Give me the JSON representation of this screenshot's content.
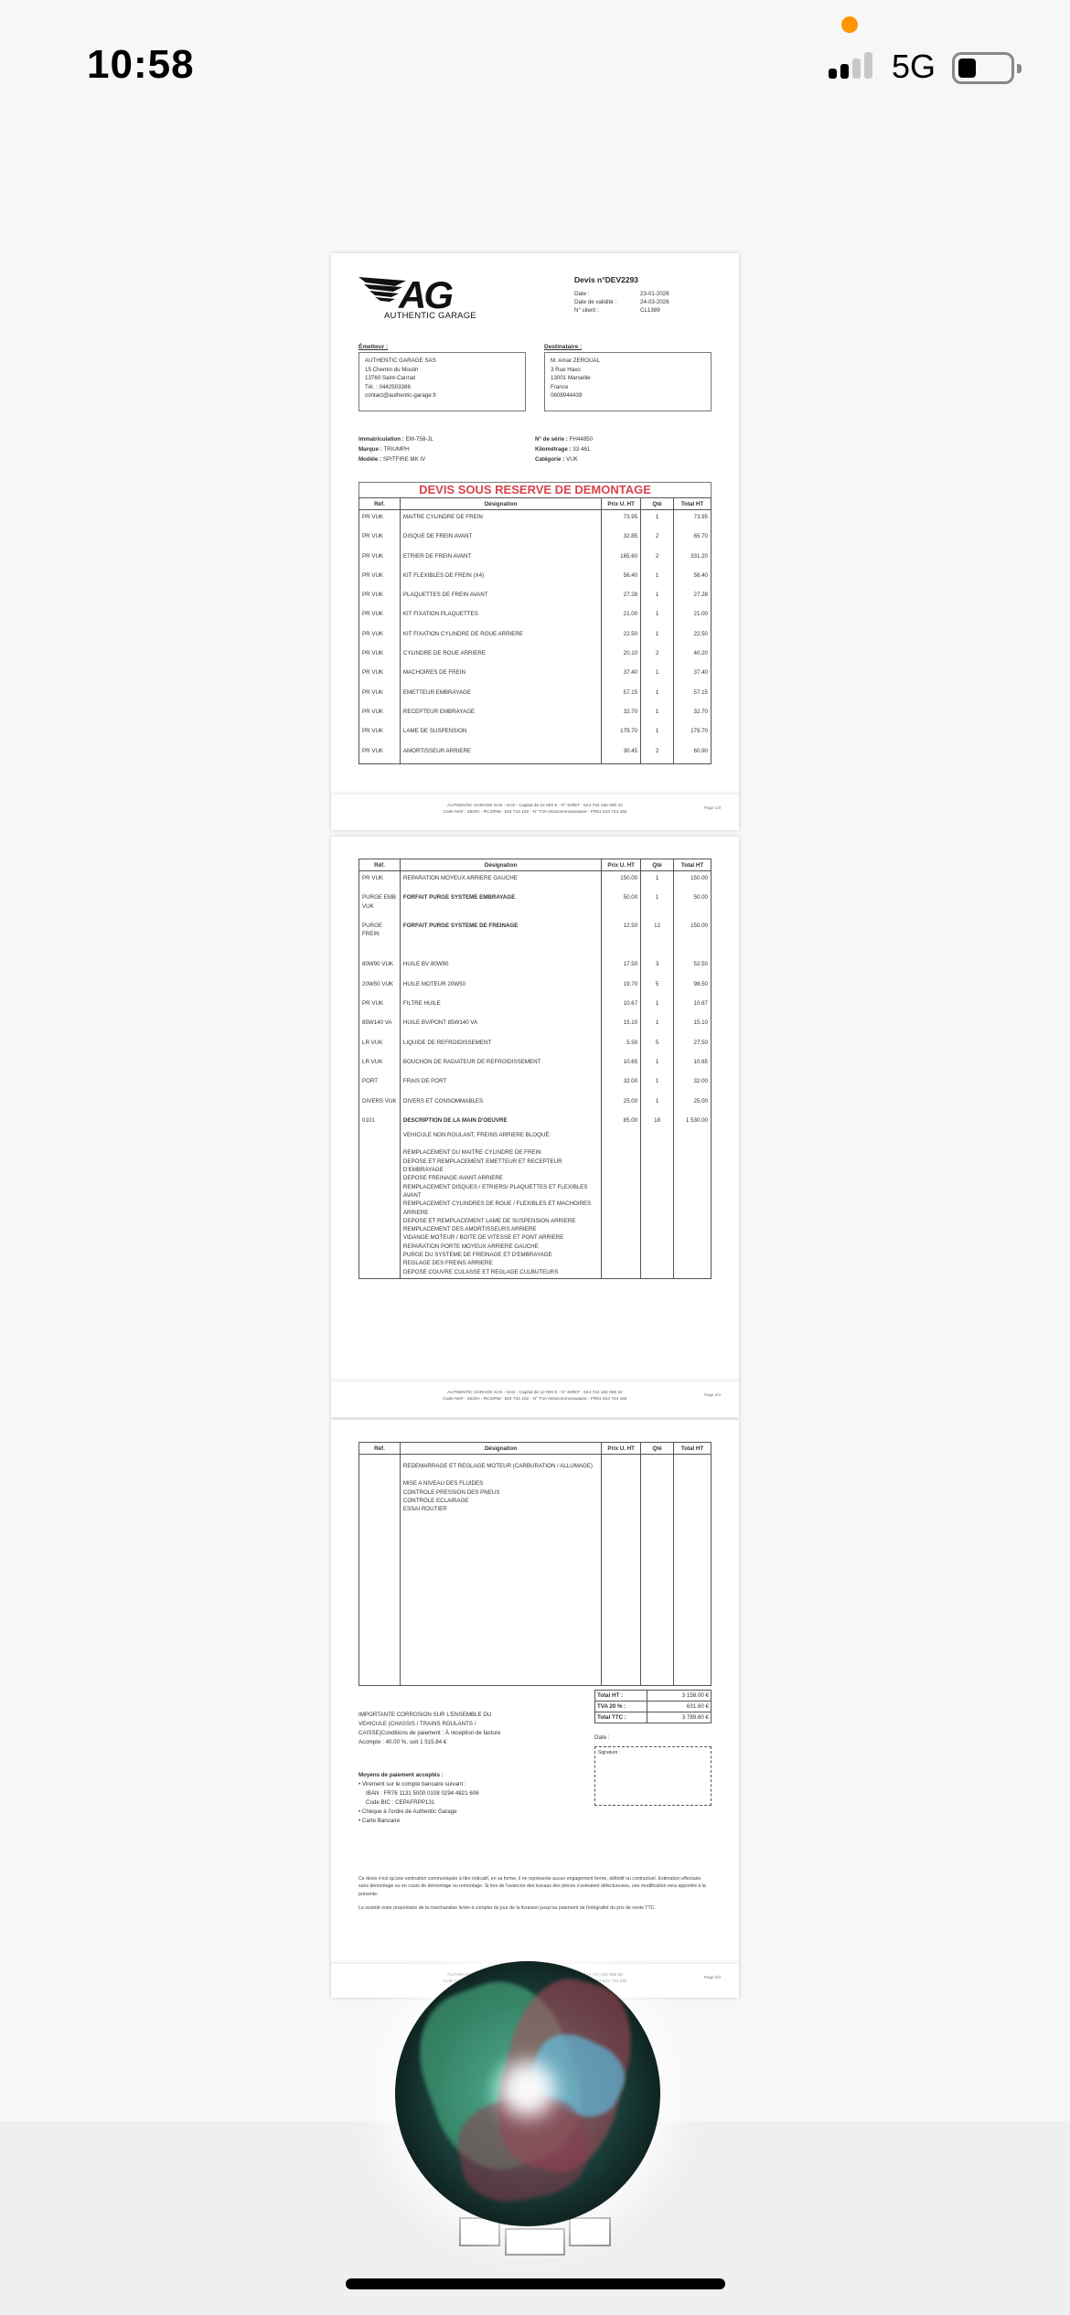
{
  "status_bar": {
    "time": "10:58",
    "network": "5G",
    "battery_percent": 25,
    "signal_bars": 2,
    "recording_dot_color": "#ff9500"
  },
  "doc": {
    "logo": {
      "letters": "AG",
      "name": "AUTHENTIC GARAGE"
    },
    "devis_title": "Devis n°DEV2293",
    "meta": [
      {
        "label": "Date :",
        "value": "23-01-2026"
      },
      {
        "label": "Date de validité :",
        "value": "24-03-2026"
      },
      {
        "label": "N° client :",
        "value": "CL1389"
      }
    ],
    "emetteur": {
      "label": "Émetteur :",
      "lines": [
        "AUTHENTIC GARAGE SAS",
        "15 Chemin du Moulin",
        "13760 Saint-Cannat",
        "Tél. : 0442503386",
        "contact@authentic-garage.fr"
      ]
    },
    "destinataire": {
      "label": "Destinataire :",
      "lines": [
        "M. Amar ZEROUAL",
        "3 Rue Haxo",
        "13001 Marseille",
        "France",
        "0608944439"
      ]
    },
    "vehicle_left": [
      {
        "label": "Immatriculation :",
        "value": "EM-758-JL"
      },
      {
        "label": "Marque :",
        "value": "TRIUMPH"
      },
      {
        "label": "Modèle :",
        "value": "SPITFIRE MK IV"
      }
    ],
    "vehicle_right": [
      {
        "label": "N° de série :",
        "value": "FH44850"
      },
      {
        "label": "Kilométrage :",
        "value": "33 461"
      },
      {
        "label": "Catégorie :",
        "value": "VUK"
      }
    ],
    "banner": "DEVIS SOUS RESERVE DE DEMONTAGE",
    "banner_color": "#d9434a",
    "columns": [
      "Réf.",
      "Désignation",
      "Prix U. HT",
      "Qté",
      "Total HT"
    ],
    "page1_rows": [
      [
        "PR VUK",
        "MAITRE CYLINDRE DE FREIN",
        "73.95",
        "1",
        "73.95"
      ],
      [
        "PR VUK",
        "DISQUE DE FREIN AVANT",
        "32.85",
        "2",
        "65.70"
      ],
      [
        "PR VUK",
        "ETRIER DE FREIN AVANT",
        "165.60",
        "2",
        "331.20"
      ],
      [
        "PR VUK",
        " KIT FLEXIBLES DE FREIN (X4)",
        "56.40",
        "1",
        "56.40"
      ],
      [
        "PR VUK",
        "PLAQUETTES DE FREIN AVANT",
        "27.28",
        "1",
        "27.28"
      ],
      [
        "PR VUK",
        "KIT FIXATION PLAQUETTES",
        "21.00",
        "1",
        "21.00"
      ],
      [
        "PR VUK",
        "KIT FIXATION CYLINDRE DE ROUE ARRIERE",
        "22.50",
        "1",
        "22.50"
      ],
      [
        "PR VUK",
        " CYLINDRE DE ROUE ARRIERE",
        "20.10",
        "2",
        "40.20"
      ],
      [
        "PR VUK",
        "MACHOIRES DE FREIN",
        "37.40",
        "1",
        "37.40"
      ],
      [
        "PR VUK",
        "EMETTEUR EMBRAYAGE",
        "57.15",
        "1",
        "57.15"
      ],
      [
        "PR VUK",
        "RECEPTEUR EMBRAYAGE",
        "32.70",
        "1",
        "32.70"
      ],
      [
        "PR VUK",
        "LAME DE SUSPENSION",
        "179.70",
        "1",
        "179.70"
      ],
      [
        "PR VUK",
        "AMORTISSEUR ARRIERE",
        "30.45",
        "2",
        "60.90"
      ]
    ],
    "page2_rows": [
      [
        "PR VUK",
        "REPARATION MOYEUX ARRIERE GAUCHE",
        "150.00",
        "1",
        "150.00",
        false
      ],
      [
        "PURGE EMB VUK",
        "FORFAIT PURGE SYSTEME EMBRAYAGE",
        "50.00",
        "1",
        "50.00",
        true
      ],
      [
        "PURGE FREIN",
        "FORFAIT PURGE SYSTEME DE FREINAGE",
        "12.50",
        "12",
        "150.00",
        true
      ],
      [
        "80W90 VUK",
        "HUILE BV 80W90",
        "17.50",
        "3",
        "52.50",
        false
      ],
      [
        "20W50 VUK",
        "HUILE MOTEUR 20W50",
        "19.70",
        "5",
        "98.50",
        false
      ],
      [
        "PR VUK",
        "FILTRE HUILE",
        "10.67",
        "1",
        "10.67",
        false
      ],
      [
        "85W140 VA",
        "HUILE BV/PONT 85W140 VA",
        "15.10",
        "1",
        "15.10",
        false
      ],
      [
        "LR VUK",
        "LIQUIDE DE REFROIDISSEMENT",
        "5.50",
        "5",
        "27.50",
        false
      ],
      [
        "LR VUK",
        "BOUCHON DE RADIATEUR DE REFROIDISSEMENT",
        "10.65",
        "1",
        "10.65",
        false
      ],
      [
        "PORT",
        "FRAIS DE PORT",
        "32.00",
        "1",
        "32.00",
        false
      ],
      [
        "DIVERS VUK",
        "DIVERS ET CONSOMMABLES",
        "25.00",
        "1",
        "25.00",
        false
      ]
    ],
    "labour": {
      "ref": "0101",
      "title": "DESCRIPTION DE LA MAIN D'OEUVRE",
      "price": "85.00",
      "qty": "18",
      "total": "1 530.00",
      "intro": "VEHICULE NON ROULANT, FREINS ARRIERE BLOQUÉ:",
      "lines": [
        "REMPLACEMENT DU MAITRE CYLINDRE DE FREIN",
        "DEPOSE ET REMPLACEMENT EMETTEUR ET RECEPTEUR D'EMBRAYAGE",
        "DEPOSE FREINAGE AVANT ARRIERE",
        "REMPLACEMENT DISQUES / ETRIERS/ PLAQUETTES ET FLEXIBLES AVANT",
        "REMPLACEMENT CYLINDRES DE ROUE / FLEXIBLES ET MACHOIRES ARRIERE",
        "DEPOSE ET REMPLACEMENT LAME DE SUSPENSION ARRIERE",
        "REMPLACEMENT DES AMORTISSEURS ARRIERE",
        "VIDANGE MOTEUR / BOITE DE VITESSE ET PONT ARRIERE",
        "REPARATION PORTE MOYEUX ARRIERE GAUCHE",
        "PURGE DU SYSTEME DE FREINAGE ET D'EMBRAYAGE",
        "REGLAGE DES FREINS ARRIERE",
        "DEPOSE COUVRE CULASSE ET REGLAGE CULBUTEURS"
      ],
      "page3_first": "REDEMARRAGE ET REGLAGE MOTEUR (CARBURATION / ALLUMAGE)",
      "page3_lines": [
        "MISE A NIVEAU DES FLUIDES",
        "CONTROLE PRESSION DES PNEUS",
        "CONTROLE ECLAIRAGE",
        "ESSAI ROUTIER"
      ]
    },
    "totals": [
      {
        "label": "Total HT :",
        "value": "3 158.00 €"
      },
      {
        "label": "TVA 20 % :",
        "value": "631.60 €"
      },
      {
        "label": "Total TTC :",
        "value": "3 789.60 €"
      }
    ],
    "remarks": [
      "IMPORTANTE CORROSION SUR L'ENSEMBLE DU VEHICULE (CHASSIS / TRAINS ROULANTS / CAISSE)Conditions de paiement : À réception de facture",
      "Acompte : 40.00 %, soit 1 515.84 €"
    ],
    "date_label": "Date :",
    "signature_label": "Signature :",
    "payment": {
      "title": "Moyens de paiement acceptés :",
      "items": [
        "Virement sur le compte bancaire suivant :",
        "IBAN : FR76 1131 5000 0108 0294 4821 606",
        "Code BIC : CEPAFRPP131",
        "Chèque à l'ordre de Authentic Garage",
        "Carte Bancaire"
      ]
    },
    "disclaimer": [
      "Ce devis n'est qu'une estimation communiquée à titre indicatif, en sa forme, il ne représente aucun engagement ferme, définitif ou contractuel. Estimation effectuée sans démontage ou en cours de démontage ou remontage. Si lors de l'avancée des travaux des pièces s'avéraient défectueuses, une modification sera apportée à la présente.",
      "La société reste propriétaire de la marchandise livrée à compter du jour de la livraison jusqu'au paiement de l'intégralité du prix de vente TTC."
    ],
    "footer": [
      "AUTHENTIC GARAGE SAS - SAS - Capital de 12 000 € - N° SIRET : 524 744 182 000 22",
      "Code NAF : 4520A - RCS/RM : 524 744 182 - N° TVA Intracommunautaire : FR61 524 744 182"
    ],
    "page_labels": [
      "Page 1/3",
      "Page 2/3",
      "Page 3/3"
    ]
  },
  "overlay": {
    "icon": "siri-orb-icon"
  }
}
